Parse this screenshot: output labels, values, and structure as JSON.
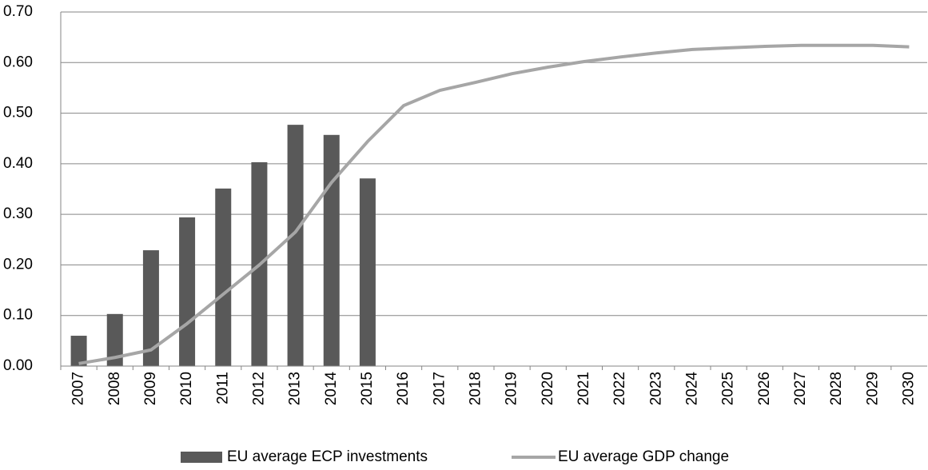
{
  "chart_data": {
    "type": "bar",
    "categories": [
      "2007",
      "2008",
      "2009",
      "2010",
      "2011",
      "2012",
      "2013",
      "2014",
      "2015",
      "2016",
      "2017",
      "2018",
      "2019",
      "2020",
      "2021",
      "2022",
      "2023",
      "2024",
      "2025",
      "2026",
      "2027",
      "2028",
      "2029",
      "2030"
    ],
    "series": [
      {
        "name": "EU average ECP investments",
        "type": "bar",
        "color": "#595959",
        "values": [
          0.06,
          0.103,
          0.229,
          0.294,
          0.351,
          0.403,
          0.477,
          0.457,
          0.371,
          null,
          null,
          null,
          null,
          null,
          null,
          null,
          null,
          null,
          null,
          null,
          null,
          null,
          null,
          null
        ]
      },
      {
        "name": "EU average GDP change",
        "type": "line",
        "color": "#a6a6a6",
        "values": [
          0.005,
          0.017,
          0.032,
          0.084,
          0.142,
          0.2,
          0.265,
          0.363,
          0.444,
          0.515,
          0.545,
          0.561,
          0.578,
          0.591,
          0.602,
          0.611,
          0.619,
          0.626,
          0.629,
          0.632,
          0.634,
          0.634,
          0.634,
          0.631
        ]
      }
    ],
    "ylim": [
      0,
      0.7
    ],
    "yticks": [
      {
        "value": 0,
        "label": "0.00"
      },
      {
        "value": 0.1,
        "label": "0.10"
      },
      {
        "value": 0.2,
        "label": "0.20"
      },
      {
        "value": 0.3,
        "label": "0.30"
      },
      {
        "value": 0.4,
        "label": "0.40"
      },
      {
        "value": 0.5,
        "label": "0.50"
      },
      {
        "value": 0.6,
        "label": "0.60"
      },
      {
        "value": 0.7,
        "label": "0.70"
      }
    ],
    "grid": true,
    "legend": "bottom"
  }
}
